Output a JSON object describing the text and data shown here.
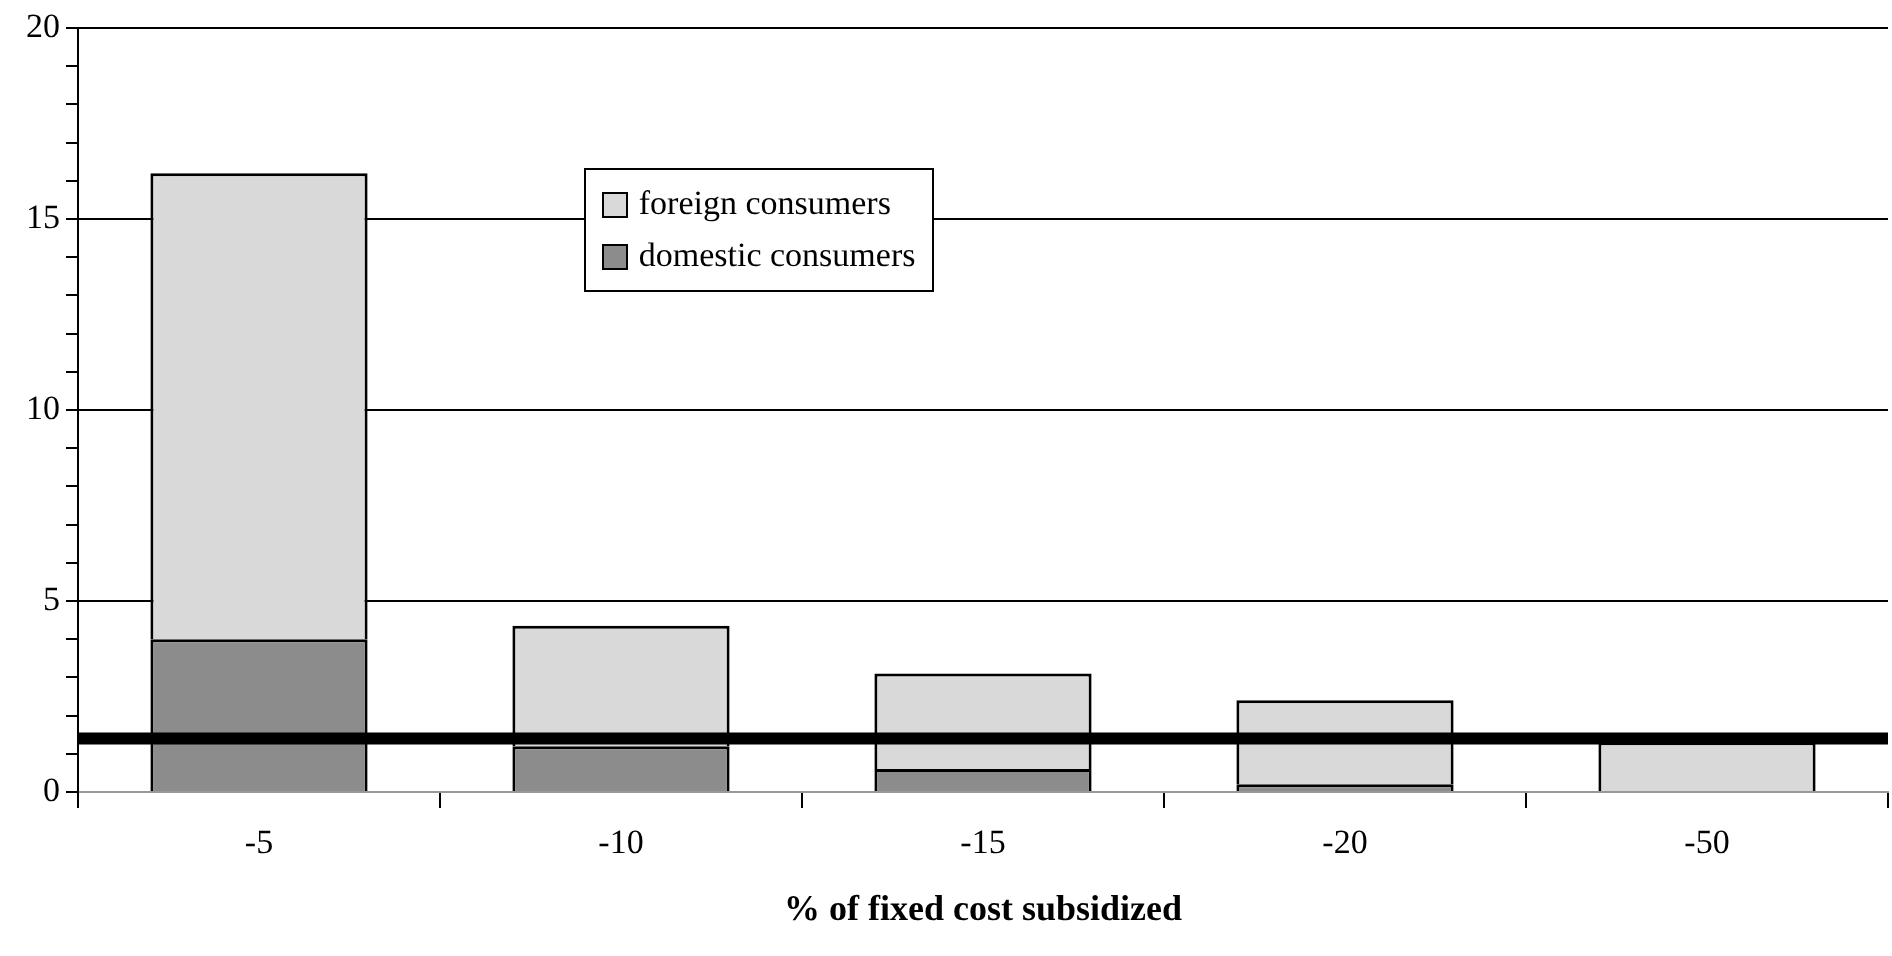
{
  "chart_data": {
    "type": "bar",
    "stacked": true,
    "xlabel": "% of fixed cost subsidized",
    "categories": [
      "-5",
      "-10",
      "-15",
      "-20",
      "-50"
    ],
    "series": [
      {
        "name": "domestic consumers",
        "color": "#8c8c8c",
        "values": [
          4.0,
          1.2,
          0.6,
          0.2,
          0
        ]
      },
      {
        "name": "foreign consumers",
        "color": "#d9d9d9",
        "values": [
          12.2,
          3.15,
          2.5,
          2.2,
          1.3
        ]
      }
    ],
    "ylim": [
      0,
      20
    ],
    "yticks": [
      0,
      {
        "value": 1,
        "label": null
      },
      {
        "value": 2,
        "label": null
      },
      {
        "value": 3,
        "label": null
      },
      {
        "value": 4,
        "label": null
      },
      5,
      {
        "value": 6,
        "label": null
      },
      {
        "value": 7,
        "label": null
      },
      {
        "value": 8,
        "label": null
      },
      {
        "value": 9,
        "label": null
      },
      10,
      {
        "value": 11,
        "label": null
      },
      {
        "value": 12,
        "label": null
      },
      {
        "value": 13,
        "label": null
      },
      {
        "value": 14,
        "label": null
      },
      15,
      {
        "value": 16,
        "label": null
      },
      {
        "value": 17,
        "label": null
      },
      {
        "value": 18,
        "label": null
      },
      {
        "value": 19,
        "label": null
      },
      20
    ],
    "ref_lines": [
      {
        "axis": "y",
        "value": 1.4,
        "color": "#000000"
      }
    ],
    "grid": "y",
    "legend": "top"
  }
}
